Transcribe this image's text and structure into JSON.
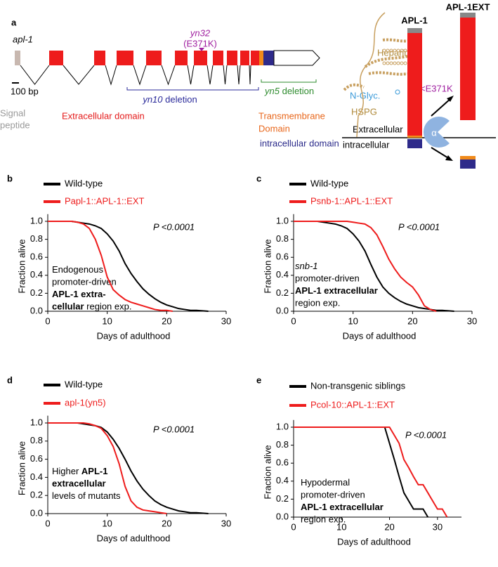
{
  "panel_a": {
    "letter": "a",
    "gene": "apl-1",
    "scale": "100 bp",
    "mutation": "yn32",
    "mutation_change": "(E371K)",
    "yn10": "yn10",
    "yn10_suffix": "deletion",
    "yn5": "yn5",
    "yn5_suffix": "deletion",
    "signal": [
      "Signal",
      "peptide"
    ],
    "extracellular_domain": "Extracellular domain",
    "transmembrane": [
      "Transmembrane",
      "Domain"
    ],
    "intracellular_domain": "intracellular domain",
    "apl1": "APL-1",
    "apl1ext": "APL-1EXT",
    "heparin": "Heparin",
    "nglyc": "N-Glyc.",
    "e371k": "<E371K",
    "hspg": "HSPG",
    "extracellular": "Extracellular",
    "intracellular": "intracellular",
    "alpha": "α"
  },
  "chart_data": [
    {
      "type": "line",
      "panel": "b",
      "xlabel": "Days of adulthood",
      "ylabel": "Fraction alive",
      "p_value": "P <0.0001",
      "x": [
        0,
        1,
        2,
        3,
        4,
        5,
        6,
        7,
        8,
        9,
        10,
        11,
        12,
        13,
        14,
        15,
        16,
        17,
        18,
        19,
        20,
        21,
        22,
        23,
        24,
        25,
        26,
        27
      ],
      "series": [
        {
          "name": "Wild-type",
          "color": "#000000",
          "values": [
            1,
            1,
            1,
            1,
            1,
            0.99,
            0.98,
            0.97,
            0.95,
            0.92,
            0.86,
            0.78,
            0.67,
            0.53,
            0.42,
            0.33,
            0.25,
            0.19,
            0.14,
            0.1,
            0.07,
            0.05,
            0.03,
            0.02,
            0.01,
            0.01,
            0.005,
            0
          ]
        },
        {
          "name": "Papl-1::APL-1::EXT",
          "color": "#ee1c1c",
          "values": [
            1,
            1,
            1,
            1,
            1,
            0.99,
            0.97,
            0.92,
            0.8,
            0.62,
            0.38,
            0.24,
            0.18,
            0.13,
            0.1,
            0.08,
            0.06,
            0.04,
            0.02,
            0.01,
            0.01,
            0,
            null,
            null,
            null,
            null,
            null,
            null
          ]
        }
      ],
      "annotation": [
        [
          {
            "text": "Endogenous"
          }
        ],
        [
          {
            "text": "promoter-driven"
          }
        ],
        [
          {
            "text": "APL-1 extra-",
            "style": "bold"
          }
        ],
        [
          {
            "text": "cellular",
            "style": "bold"
          },
          {
            "text": " region exp."
          }
        ]
      ],
      "xlim": [
        0,
        30
      ],
      "ylim": [
        0,
        1.08
      ],
      "xticks": [
        0,
        10,
        20,
        30
      ],
      "yticks": [
        {
          "value": 0,
          "label": "0.0"
        },
        {
          "value": 0.2,
          "label": "0.2"
        },
        {
          "value": 0.4,
          "label": "0.4"
        },
        {
          "value": 0.6,
          "label": "0.6"
        },
        {
          "value": 0.8,
          "label": "0.8"
        },
        {
          "value": 1,
          "label": "1.0"
        }
      ]
    },
    {
      "type": "line",
      "panel": "c",
      "xlabel": "Days of adulthood",
      "ylabel": "Fraction alive",
      "p_value": "P <0.0001",
      "x": [
        0,
        1,
        2,
        3,
        4,
        5,
        6,
        7,
        8,
        9,
        10,
        11,
        12,
        13,
        14,
        15,
        16,
        17,
        18,
        19,
        20,
        21,
        22,
        23,
        24,
        25,
        26,
        27
      ],
      "series": [
        {
          "name": "Wild-type",
          "color": "#000000",
          "values": [
            1,
            1,
            1,
            1,
            1,
            0.99,
            0.98,
            0.97,
            0.95,
            0.92,
            0.86,
            0.78,
            0.67,
            0.52,
            0.38,
            0.27,
            0.2,
            0.15,
            0.11,
            0.08,
            0.06,
            0.04,
            0.03,
            0.02,
            0.01,
            0.01,
            0.005,
            0
          ]
        },
        {
          "name": "Psnb-1::APL-1::EXT",
          "color": "#ee1c1c",
          "values": [
            1,
            1,
            1,
            1,
            1,
            1,
            1,
            1,
            1,
            1,
            0.99,
            0.98,
            0.97,
            0.93,
            0.85,
            0.72,
            0.58,
            0.47,
            0.38,
            0.32,
            0.27,
            0.18,
            0.06,
            0.02,
            0,
            null,
            null,
            null
          ]
        }
      ],
      "annotation": [
        [
          {
            "text": "snb-1",
            "style": "italic"
          }
        ],
        [
          {
            "text": "promoter-driven"
          }
        ],
        [
          {
            "text": "APL-1 extracellular",
            "style": "bold"
          }
        ],
        [
          {
            "text": "region exp."
          }
        ]
      ],
      "xlim": [
        0,
        30
      ],
      "ylim": [
        0,
        1.08
      ],
      "xticks": [
        0,
        10,
        20,
        30
      ],
      "yticks": [
        {
          "value": 0,
          "label": "0.0"
        },
        {
          "value": 0.2,
          "label": "0.2"
        },
        {
          "value": 0.4,
          "label": "0.4"
        },
        {
          "value": 0.6,
          "label": "0.6"
        },
        {
          "value": 0.8,
          "label": "0.8"
        },
        {
          "value": 1,
          "label": "1.0"
        }
      ]
    },
    {
      "type": "line",
      "panel": "d",
      "xlabel": "Days of adulthood",
      "ylabel": "Fraction alive",
      "p_value": "P <0.0001",
      "x": [
        0,
        1,
        2,
        3,
        4,
        5,
        6,
        7,
        8,
        9,
        10,
        11,
        12,
        13,
        14,
        15,
        16,
        17,
        18,
        19,
        20,
        21,
        22,
        23,
        24,
        25,
        26,
        27
      ],
      "series": [
        {
          "name": "Wild-type",
          "color": "#000000",
          "values": [
            1,
            1,
            1,
            1,
            1,
            1,
            0.99,
            0.98,
            0.97,
            0.95,
            0.9,
            0.82,
            0.72,
            0.6,
            0.47,
            0.36,
            0.27,
            0.2,
            0.14,
            0.1,
            0.07,
            0.05,
            0.03,
            0.02,
            0.01,
            0.01,
            0.005,
            0
          ]
        },
        {
          "name": "apl-1(yn5)",
          "color": "#ee1c1c",
          "values": [
            1,
            1,
            1,
            1,
            1,
            1,
            1,
            0.99,
            0.97,
            0.94,
            0.86,
            0.74,
            0.55,
            0.3,
            0.14,
            0.07,
            0.04,
            0.03,
            0.02,
            0.01,
            0,
            null,
            null,
            null,
            null,
            null,
            null,
            null
          ]
        }
      ],
      "annotation": [
        [
          {
            "text": "Higher "
          },
          {
            "text": "APL-1",
            "style": "bold"
          }
        ],
        [
          {
            "text": "extracellular",
            "style": "bold"
          }
        ],
        [
          {
            "text": "levels of mutants"
          }
        ]
      ],
      "xlim": [
        0,
        30
      ],
      "ylim": [
        0,
        1.08
      ],
      "xticks": [
        0,
        10,
        20,
        30
      ],
      "yticks": [
        {
          "value": 0,
          "label": "0.0"
        },
        {
          "value": 0.2,
          "label": "0.2"
        },
        {
          "value": 0.4,
          "label": "0.4"
        },
        {
          "value": 0.6,
          "label": "0.6"
        },
        {
          "value": 0.8,
          "label": "0.8"
        },
        {
          "value": 1,
          "label": "1.0"
        }
      ]
    },
    {
      "type": "line",
      "panel": "e",
      "xlabel": "Days of adulthood",
      "ylabel": "Fraction alive",
      "p_value": "P <0.0001",
      "x": [
        0,
        19,
        20,
        21,
        22,
        23,
        24,
        25,
        26,
        27,
        28,
        29,
        30,
        31,
        32
      ],
      "series": [
        {
          "name": "Non-transgenic siblings",
          "color": "#000000",
          "values": [
            1,
            1,
            0.82,
            0.64,
            0.45,
            0.27,
            0.18,
            0.09,
            0.09,
            0.09,
            0,
            null,
            null,
            null,
            null
          ]
        },
        {
          "name": "Pcol-10::APL-1::EXT",
          "color": "#ee1c1c",
          "values": [
            1,
            1,
            1,
            0.91,
            0.82,
            0.64,
            0.55,
            0.45,
            0.36,
            0.36,
            0.27,
            0.18,
            0.09,
            0.09,
            0
          ]
        }
      ],
      "annotation": [
        [
          {
            "text": "Hypodermal"
          }
        ],
        [
          {
            "text": "promoter-driven"
          }
        ],
        [
          {
            "text": "APL-1 extracellular",
            "style": "bold"
          }
        ],
        [
          {
            "text": "region exp."
          }
        ]
      ],
      "xlim": [
        0,
        35
      ],
      "ylim": [
        0,
        1.08
      ],
      "xticks": [
        0,
        10,
        20,
        30
      ],
      "yticks": [
        {
          "value": 0,
          "label": "0.0"
        },
        {
          "value": 0.2,
          "label": "0.2"
        },
        {
          "value": 0.4,
          "label": "0.4"
        },
        {
          "value": 0.6,
          "label": "0.6"
        },
        {
          "value": 0.8,
          "label": "0.8"
        },
        {
          "value": 1,
          "label": "1.0"
        }
      ]
    }
  ]
}
